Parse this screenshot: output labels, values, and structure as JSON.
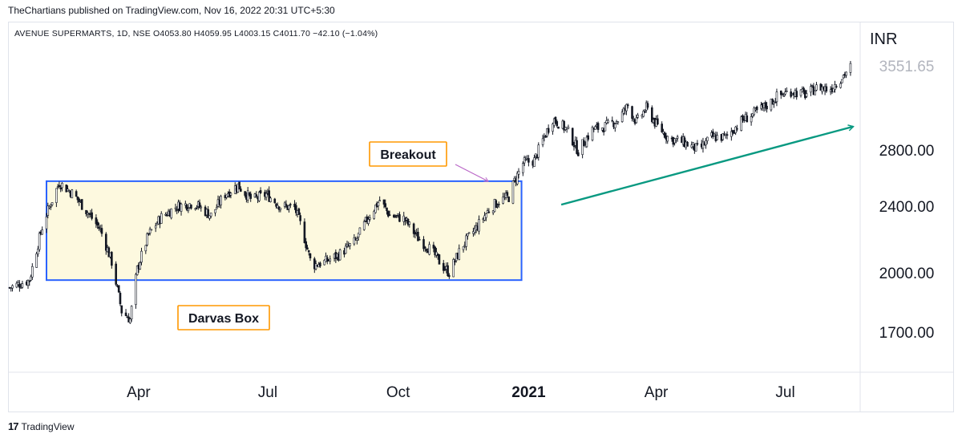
{
  "header": {
    "published": "TheChartians published on TradingView.com, Nov 16, 2022 20:31 UTC+5:30",
    "legend": "AVENUE SUPERMARTS, 1D, NSE  O4053.80  H4059.95  L4003.15  C4011.70  −42.10 (−1.04%)"
  },
  "footer": {
    "brand": "TradingView",
    "logo": "17"
  },
  "chart_data": {
    "type": "candlestick",
    "currency": "INR",
    "last_price": "3551.65",
    "y_ticks": [
      "2800.00",
      "2400.00",
      "2000.00",
      "1700.00"
    ],
    "y_tick_values": [
      2800,
      2400,
      2000,
      1700
    ],
    "x_ticks": [
      {
        "label": "Apr",
        "bold": false
      },
      {
        "label": "Jul",
        "bold": false
      },
      {
        "label": "Oct",
        "bold": false
      },
      {
        "label": "2021",
        "bold": true
      },
      {
        "label": "Apr",
        "bold": false
      },
      {
        "label": "Jul",
        "bold": false
      }
    ],
    "x_tick_dates": [
      "2020-04-01",
      "2020-07-01",
      "2020-10-01",
      "2021-01-01",
      "2021-04-01",
      "2021-07-01"
    ],
    "x_range": [
      "2020-01-01",
      "2021-08-20"
    ],
    "y_range": [
      1550,
      3700
    ],
    "price_path": [
      [
        "2020-01-01",
        1920
      ],
      [
        "2020-01-15",
        1960
      ],
      [
        "2020-01-25",
        2300
      ],
      [
        "2020-02-05",
        2560
      ],
      [
        "2020-02-15",
        2480
      ],
      [
        "2020-02-25",
        2360
      ],
      [
        "2020-03-05",
        2250
      ],
      [
        "2020-03-13",
        2060
      ],
      [
        "2020-03-20",
        1800
      ],
      [
        "2020-03-26",
        1760
      ],
      [
        "2020-03-31",
        2020
      ],
      [
        "2020-04-08",
        2220
      ],
      [
        "2020-04-17",
        2330
      ],
      [
        "2020-04-28",
        2400
      ],
      [
        "2020-05-10",
        2420
      ],
      [
        "2020-05-22",
        2340
      ],
      [
        "2020-06-01",
        2480
      ],
      [
        "2020-06-10",
        2540
      ],
      [
        "2020-06-20",
        2440
      ],
      [
        "2020-06-30",
        2480
      ],
      [
        "2020-07-10",
        2400
      ],
      [
        "2020-07-20",
        2390
      ],
      [
        "2020-07-25",
        2260
      ],
      [
        "2020-08-01",
        2040
      ],
      [
        "2020-08-10",
        2060
      ],
      [
        "2020-08-20",
        2100
      ],
      [
        "2020-09-01",
        2180
      ],
      [
        "2020-09-10",
        2330
      ],
      [
        "2020-09-18",
        2440
      ],
      [
        "2020-09-25",
        2340
      ],
      [
        "2020-10-05",
        2320
      ],
      [
        "2020-10-15",
        2200
      ],
      [
        "2020-10-25",
        2120
      ],
      [
        "2020-11-01",
        2040
      ],
      [
        "2020-11-06",
        2000
      ],
      [
        "2020-11-15",
        2150
      ],
      [
        "2020-11-25",
        2260
      ],
      [
        "2020-12-05",
        2390
      ],
      [
        "2020-12-12",
        2440
      ],
      [
        "2020-12-18",
        2460
      ],
      [
        "2020-12-22",
        2570
      ],
      [
        "2020-12-28",
        2700
      ],
      [
        "2021-01-05",
        2720
      ],
      [
        "2021-01-12",
        2900
      ],
      [
        "2021-01-18",
        3050
      ],
      [
        "2021-01-28",
        2960
      ],
      [
        "2021-02-05",
        2790
      ],
      [
        "2021-02-15",
        2960
      ],
      [
        "2021-02-25",
        2990
      ],
      [
        "2021-03-05",
        3040
      ],
      [
        "2021-03-12",
        3160
      ],
      [
        "2021-03-18",
        3020
      ],
      [
        "2021-03-25",
        3140
      ],
      [
        "2021-04-01",
        3000
      ],
      [
        "2021-04-10",
        2890
      ],
      [
        "2021-04-20",
        2860
      ],
      [
        "2021-05-01",
        2800
      ],
      [
        "2021-05-10",
        2900
      ],
      [
        "2021-05-20",
        2900
      ],
      [
        "2021-06-01",
        3040
      ],
      [
        "2021-06-10",
        3100
      ],
      [
        "2021-06-20",
        3180
      ],
      [
        "2021-06-25",
        3240
      ],
      [
        "2021-07-05",
        3290
      ],
      [
        "2021-07-15",
        3260
      ],
      [
        "2021-07-25",
        3330
      ],
      [
        "2021-08-01",
        3300
      ],
      [
        "2021-08-10",
        3420
      ],
      [
        "2021-08-17",
        3530
      ]
    ],
    "annotations": [
      {
        "type": "box",
        "label": "Darvas Box",
        "x_start": "2020-01-27",
        "x_end": "2020-12-27",
        "y_low": 1960,
        "y_high": 2570
      },
      {
        "type": "label",
        "label": "Breakout"
      },
      {
        "type": "trend-arrow",
        "x_start": "2021-01-24",
        "y_start": 2410,
        "x_end": "2021-08-18",
        "y_end": 2985
      }
    ]
  },
  "colors": {
    "candle": "#131722",
    "box_fill": "#fdf9df",
    "box_border": "#2962ff",
    "label_border": "#ff9800",
    "breakout_arrow": "#ba68c8",
    "trend_arrow": "#089981"
  }
}
